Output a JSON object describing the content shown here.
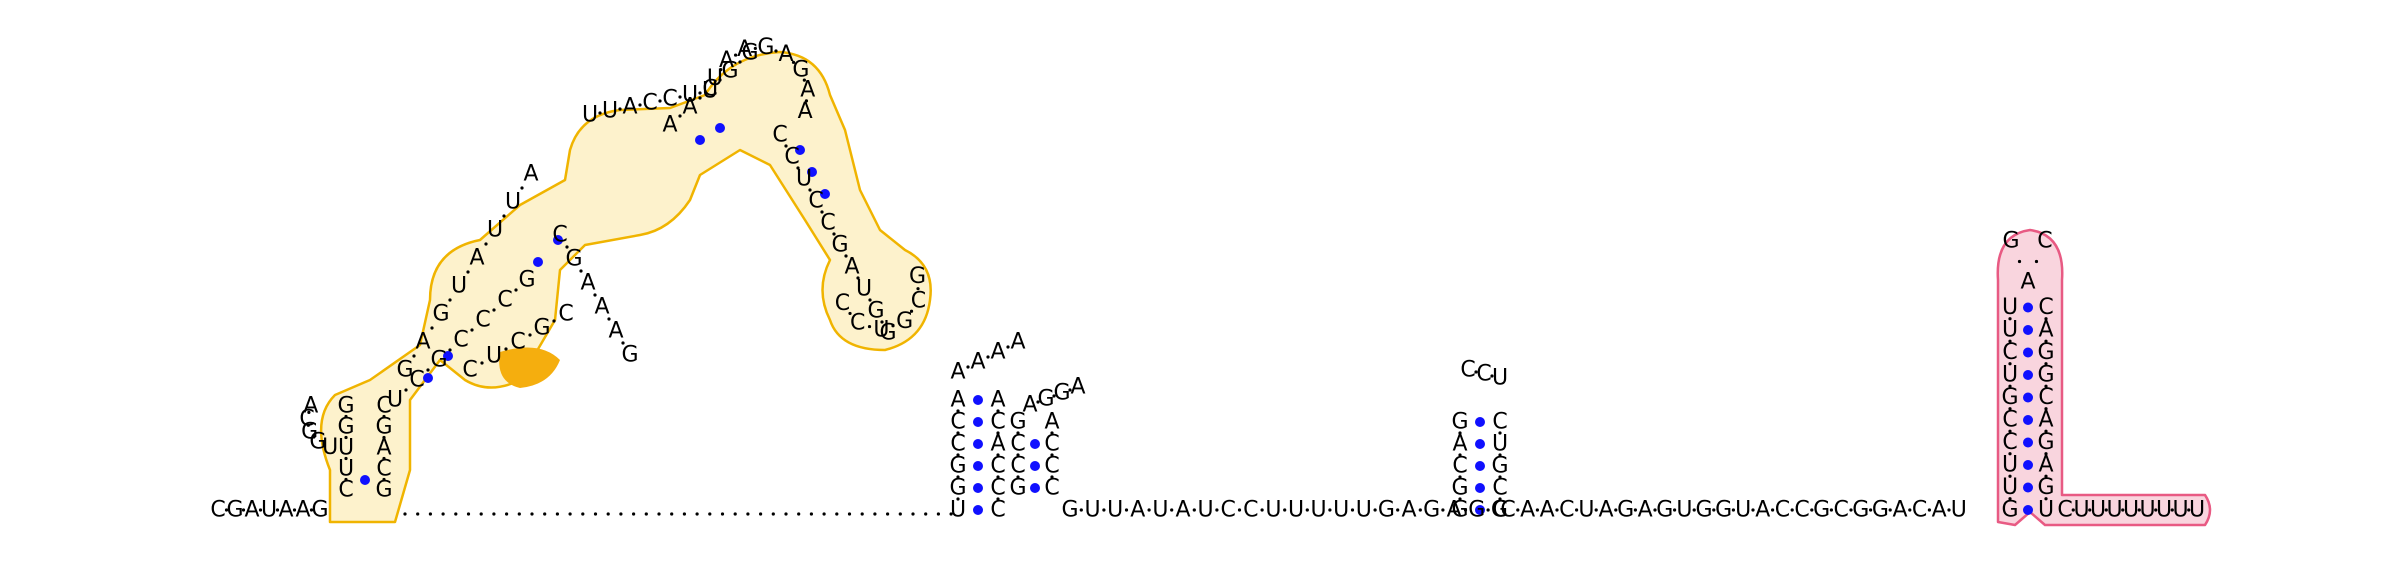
{
  "colors": {
    "orange_fill": "#fdf2cc",
    "orange_stroke": "#f0b400",
    "orange_highlight": "#f5ae0e",
    "pink_fill": "#f9d5de",
    "pink_stroke": "#e85a83",
    "pair_dot": "#1010ff",
    "text": "#000000"
  },
  "diagram": {
    "five_prime_tail": [
      "C",
      "G",
      "A",
      "U",
      "A",
      "A",
      "G"
    ],
    "dotted_linker_count": 44,
    "helix1_left": [
      "C",
      "U",
      "U",
      "G",
      "G"
    ],
    "helix1_right": [
      "G",
      "C",
      "A",
      "G",
      "C"
    ],
    "small_hairpin_top": [
      "A",
      "C",
      "G",
      "G",
      "U"
    ],
    "mid_segment": [
      "U",
      "C",
      "G",
      "C",
      "C",
      "C",
      "G"
    ],
    "left_arm_up": [
      "G",
      "A",
      "G",
      "U",
      "A",
      "U",
      "U",
      "A"
    ],
    "loop1_right": [
      "C",
      "U",
      "C",
      "G",
      "C"
    ],
    "right_arm_down": [
      "C",
      "G",
      "A",
      "A",
      "A",
      "G"
    ],
    "internal_loop_top": [
      "U",
      "U",
      "A",
      "C",
      "C",
      "U",
      "U"
    ],
    "helix_pairs_top": [
      "A",
      "A",
      "C",
      "G",
      "G"
    ],
    "terminal_loop_top": [
      "U",
      "A",
      "A",
      "G",
      "A",
      "G",
      "A",
      "A"
    ],
    "terminal_helix_right": [
      "C",
      "C",
      "U",
      "C",
      "C",
      "G",
      "A",
      "U",
      "G",
      "G"
    ],
    "terminal_loop_bottom": [
      "G",
      "C",
      "G",
      "U",
      "C",
      "C"
    ],
    "stem2_left": [
      "U",
      "G",
      "G",
      "C",
      "C",
      "A"
    ],
    "stem2_right": [
      "C",
      "C",
      "C",
      "A",
      "C",
      "A"
    ],
    "stem2_loop": [
      "A",
      "A",
      "A",
      "A"
    ],
    "stem2b_left": [
      "G",
      "C",
      "C",
      "G"
    ],
    "stem2b_right": [
      "C",
      "C",
      "C",
      "A"
    ],
    "stem2b_loop": [
      "A",
      "G",
      "G",
      "A"
    ],
    "linker2": [
      "G",
      "U",
      "U",
      "A",
      "U",
      "A",
      "U",
      "C",
      "C",
      "U",
      "U",
      "U",
      "U",
      "U",
      "G",
      "A",
      "G",
      "A",
      "G",
      "G"
    ],
    "stem3_left": [
      "G",
      "G",
      "C",
      "A",
      "G"
    ],
    "stem3_right": [
      "C",
      "C",
      "G",
      "U",
      "C"
    ],
    "stem3_loop": [
      "C",
      "C",
      "U"
    ],
    "linker3": [
      "C",
      "A",
      "A",
      "C",
      "U",
      "A",
      "G",
      "A",
      "G",
      "U",
      "G",
      "G",
      "U",
      "A",
      "C",
      "C",
      "G",
      "C",
      "G",
      "G",
      "A",
      "C",
      "A",
      "U"
    ],
    "terminator_left": [
      "G",
      "U",
      "U",
      "C",
      "C",
      "G",
      "U",
      "C",
      "U",
      "U"
    ],
    "terminator_loop": [
      "G",
      "A",
      "C"
    ],
    "terminator_right": [
      "U",
      "G",
      "A",
      "G",
      "A",
      "C",
      "G",
      "G",
      "A",
      "C"
    ],
    "three_prime_tail": [
      "C",
      "U",
      "U",
      "U",
      "U",
      "U",
      "U",
      "U",
      "U"
    ]
  }
}
